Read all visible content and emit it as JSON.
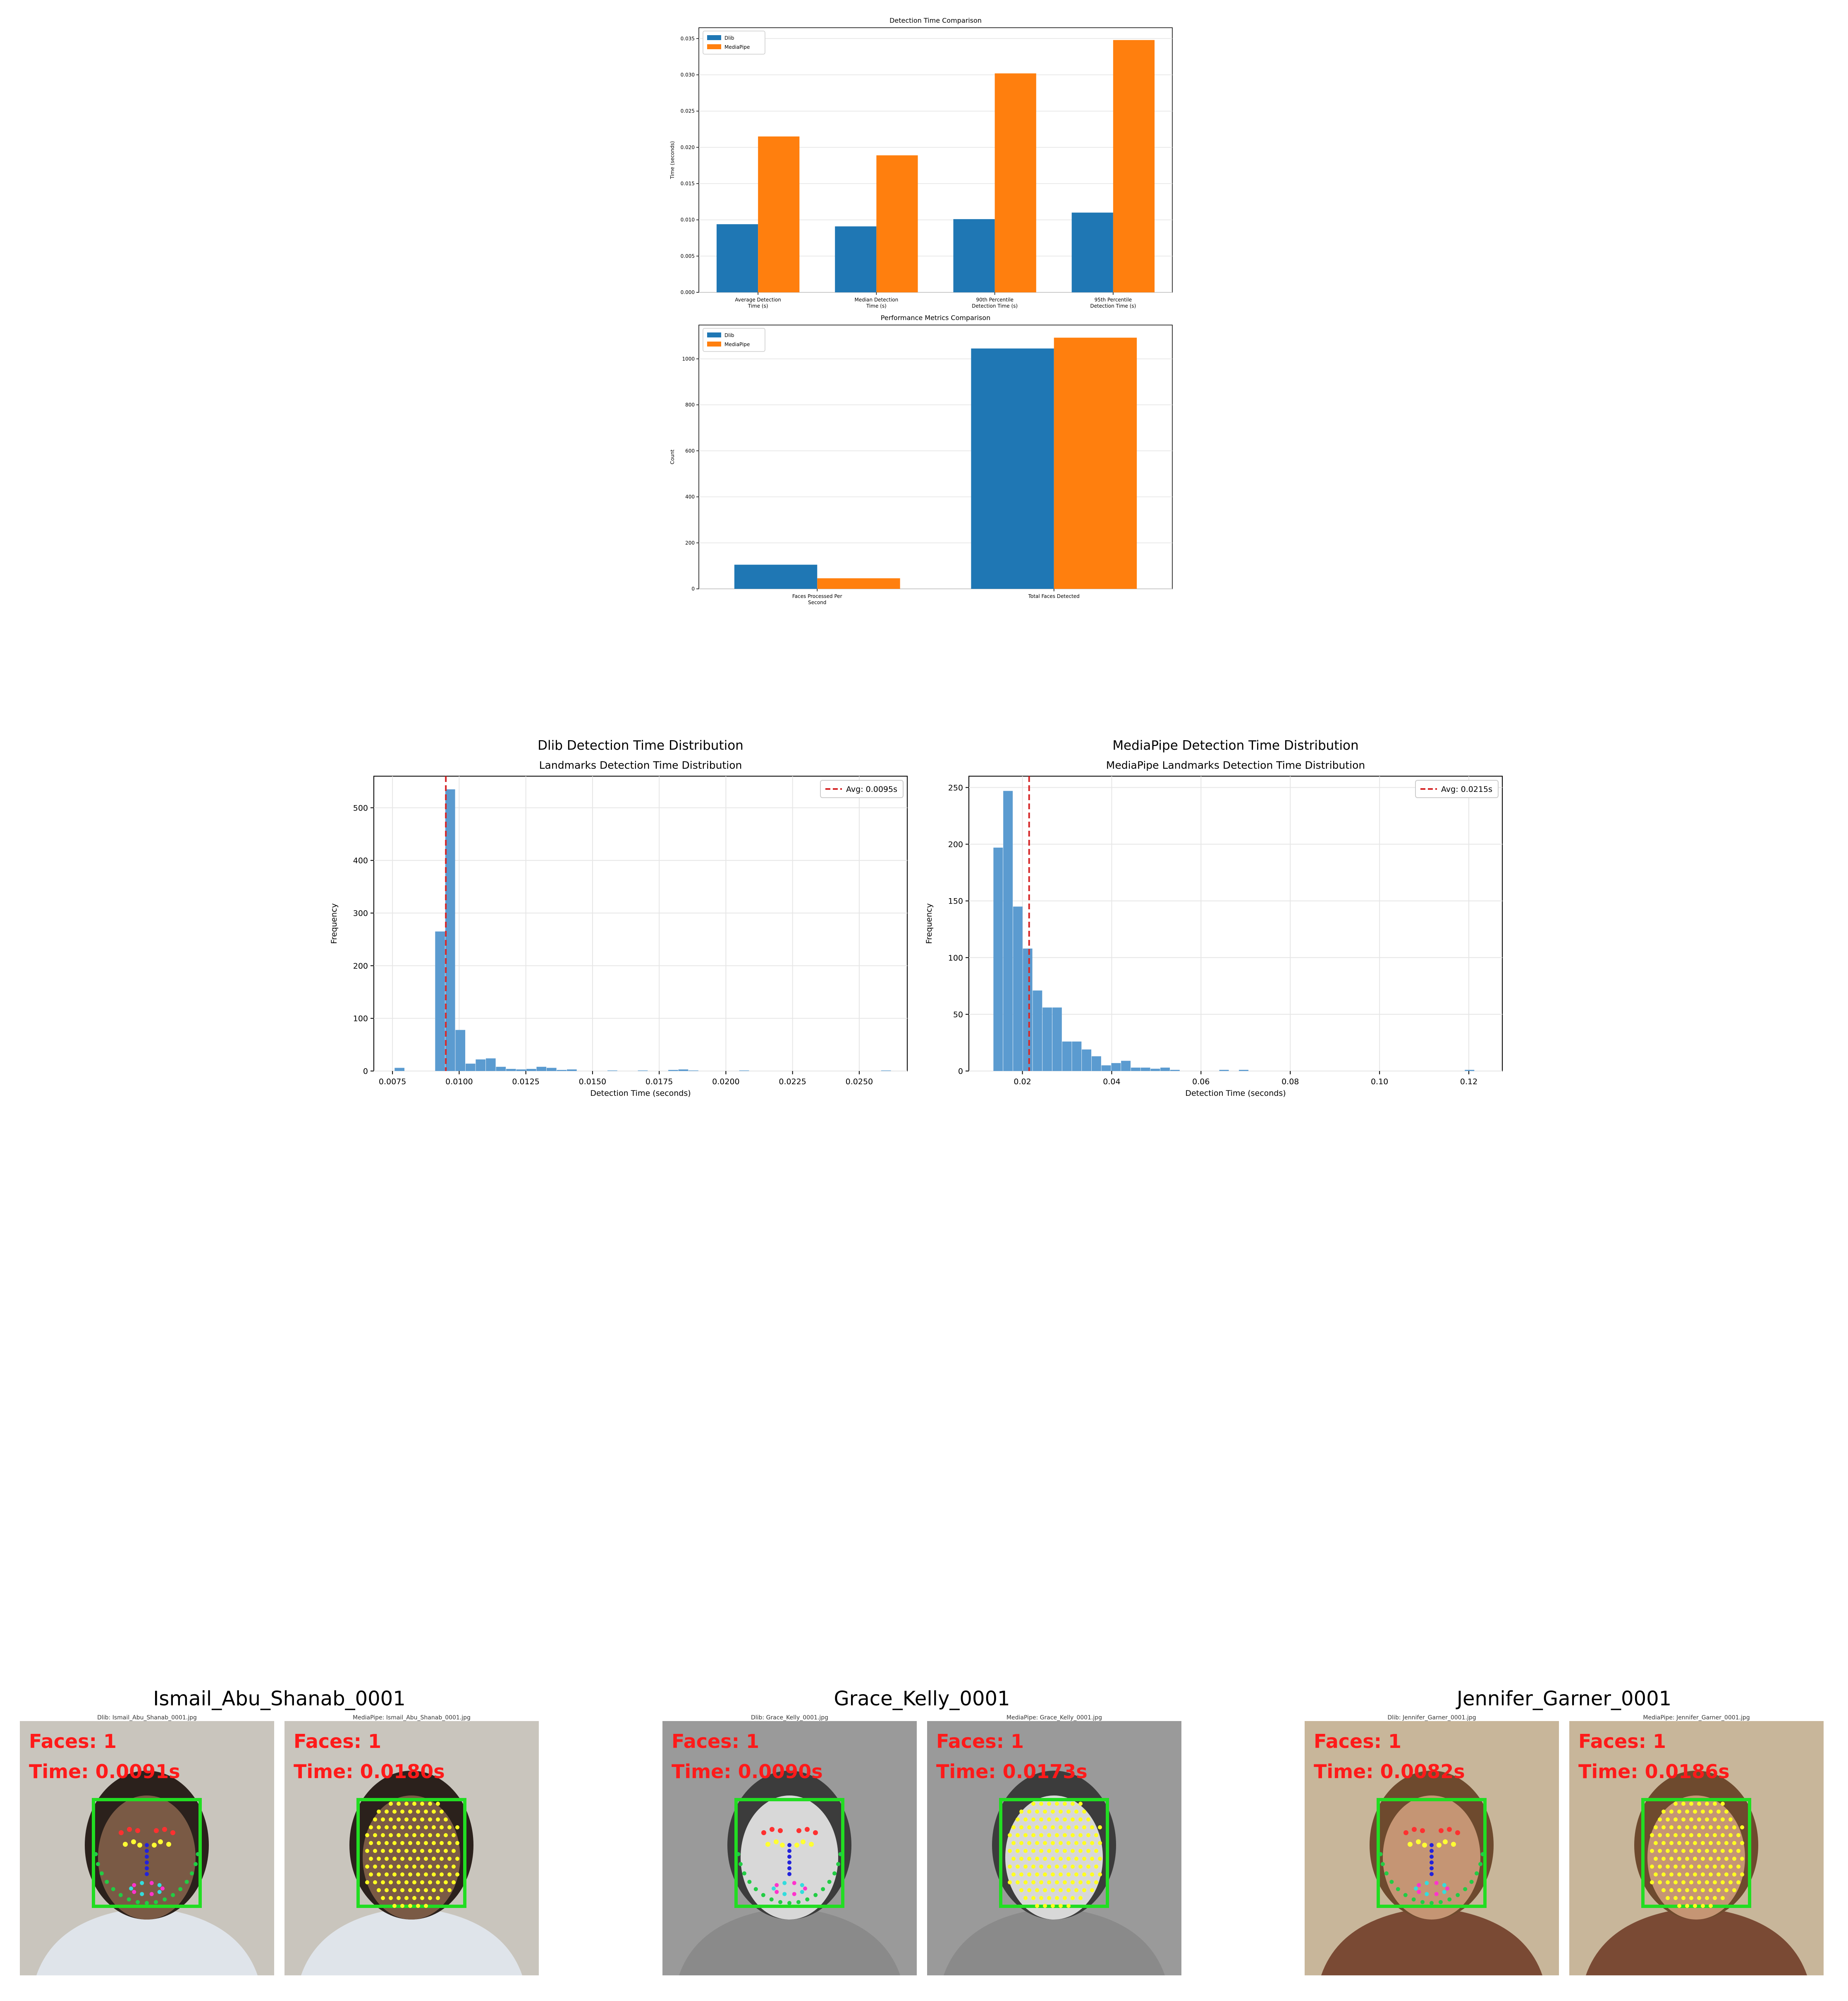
{
  "colors": {
    "dlib": "#1f77b4",
    "mediapipe": "#ff7f0e",
    "hist": "#5b9bd0",
    "avg_line": "#d62728",
    "box": "#22dd22",
    "overlay_text": "#ff1a1a"
  },
  "chart_data": [
    {
      "id": "detection-time-comparison",
      "type": "bar",
      "title": "Detection Time Comparison",
      "xlabel": "",
      "ylabel": "Time (seconds)",
      "categories": [
        "Average Detection\nTime (s)",
        "Median Detection\nTime (s)",
        "90th Percentile\nDetection Time (s)",
        "95th Percentile\nDetection Time (s)"
      ],
      "series": [
        {
          "name": "Dlib",
          "values": [
            0.0094,
            0.0091,
            0.0101,
            0.011
          ]
        },
        {
          "name": "MediaPipe",
          "values": [
            0.0215,
            0.0189,
            0.0302,
            0.0348
          ]
        }
      ],
      "ylim": [
        0,
        0.0365
      ],
      "yticks": [
        0,
        0.005,
        0.01,
        0.015,
        0.02,
        0.025,
        0.03,
        0.035
      ],
      "ytick_labels": [
        "0.000",
        "0.005",
        "0.010",
        "0.015",
        "0.020",
        "0.025",
        "0.030",
        "0.035"
      ],
      "grid": "y",
      "legend": "top-left"
    },
    {
      "id": "performance-metrics-comparison",
      "type": "bar",
      "title": "Performance Metrics Comparison",
      "xlabel": "",
      "ylabel": "Count",
      "categories": [
        "Faces Processed Per\nSecond",
        "Total Faces Detected"
      ],
      "series": [
        {
          "name": "Dlib",
          "values": [
            105,
            1045
          ]
        },
        {
          "name": "MediaPipe",
          "values": [
            46,
            1092
          ]
        }
      ],
      "ylim": [
        0,
        1147
      ],
      "yticks": [
        0,
        200,
        400,
        600,
        800,
        1000
      ],
      "ytick_labels": [
        "0",
        "200",
        "400",
        "600",
        "800",
        "1000"
      ],
      "grid": "y",
      "legend": "top-left"
    },
    {
      "id": "dlib-histogram",
      "type": "bar",
      "suptitle": "Dlib Detection Time Distribution",
      "title": "Landmarks Detection Time Distribution",
      "xlabel": "Detection Time (seconds)",
      "ylabel": "Frequency",
      "bin_start": 0.0072,
      "bin_width": 0.00038,
      "values": [
        0,
        6,
        0,
        0,
        0,
        265,
        535,
        78,
        14,
        22,
        24,
        8,
        4,
        3,
        4,
        8,
        6,
        2,
        3,
        0,
        0,
        0,
        1,
        0,
        0,
        1,
        0,
        0,
        2,
        3,
        1,
        0,
        0,
        0,
        0,
        1,
        0,
        0,
        0,
        0,
        0,
        0,
        0,
        0,
        0,
        0,
        0,
        0,
        0,
        1
      ],
      "avg": 0.0095,
      "avg_label": "Avg: 0.0095s",
      "xlim": [
        0.0068,
        0.0268
      ],
      "ylim": [
        0,
        560
      ],
      "xticks": [
        0.0075,
        0.01,
        0.0125,
        0.015,
        0.0175,
        0.02,
        0.0225,
        0.025
      ],
      "xtick_labels": [
        "0.0075",
        "0.0100",
        "0.0125",
        "0.0150",
        "0.0175",
        "0.0200",
        "0.0225",
        "0.0250"
      ],
      "yticks": [
        0,
        100,
        200,
        300,
        400,
        500
      ],
      "ytick_labels": [
        "0",
        "100",
        "200",
        "300",
        "400",
        "500"
      ],
      "grid": "both",
      "legend": "top-right"
    },
    {
      "id": "mediapipe-histogram",
      "type": "bar",
      "suptitle": "MediaPipe Detection Time Distribution",
      "title": "MediaPipe Landmarks Detection Time Distribution",
      "xlabel": "Detection Time (seconds)",
      "ylabel": "Frequency",
      "bin_start": 0.0135,
      "bin_width": 0.0022,
      "values": [
        197,
        247,
        145,
        108,
        71,
        56,
        56,
        26,
        26,
        19,
        13,
        5,
        7,
        9,
        3,
        3,
        2,
        3,
        1,
        0,
        0,
        0,
        0,
        1,
        0,
        1,
        0,
        0,
        0,
        0,
        0,
        0,
        0,
        0,
        0,
        0,
        0,
        0,
        0,
        0,
        0,
        0,
        0,
        0,
        0,
        0,
        0,
        0,
        1,
        0
      ],
      "avg": 0.0215,
      "avg_label": "Avg: 0.0215s",
      "xlim": [
        0.008,
        0.1275
      ],
      "ylim": [
        0,
        260
      ],
      "xticks": [
        0.02,
        0.04,
        0.06,
        0.08,
        0.1,
        0.12
      ],
      "xtick_labels": [
        "0.02",
        "0.04",
        "0.06",
        "0.08",
        "0.10",
        "0.12"
      ],
      "yticks": [
        0,
        50,
        100,
        150,
        200,
        250
      ],
      "ytick_labels": [
        "0",
        "50",
        "100",
        "150",
        "200",
        "250"
      ],
      "grid": "both",
      "legend": "top-right"
    }
  ],
  "samples": [
    {
      "title": "Ismail_Abu_Shanab_0001",
      "dlib": {
        "caption": "Dlib: Ismail_Abu_Shanab_0001.jpg",
        "faces": "Faces: 1",
        "time": "Time: 0.0091s"
      },
      "mediapipe": {
        "caption": "MediaPipe: Ismail_Abu_Shanab_0001.jpg",
        "faces": "Faces: 1",
        "time": "Time: 0.0180s"
      },
      "bg": "#c9c5bd",
      "skin": "#7a5a45",
      "hair": "#2b211c",
      "shirt": "#dfe4ea"
    },
    {
      "title": "Grace_Kelly_0001",
      "dlib": {
        "caption": "Dlib: Grace_Kelly_0001.jpg",
        "faces": "Faces: 1",
        "time": "Time: 0.0090s"
      },
      "mediapipe": {
        "caption": "MediaPipe: Grace_Kelly_0001.jpg",
        "faces": "Faces: 1",
        "time": "Time: 0.0173s"
      },
      "bg": "#9a9a9a",
      "skin": "#d8d8d8",
      "hair": "#3c3c3c",
      "shirt": "#8a8a8a"
    },
    {
      "title": "Jennifer_Garner_0001",
      "dlib": {
        "caption": "Dlib: Jennifer_Garner_0001.jpg",
        "faces": "Faces: 1",
        "time": "Time: 0.0082s"
      },
      "mediapipe": {
        "caption": "MediaPipe: Jennifer_Garner_0001.jpg",
        "faces": "Faces: 1",
        "time": "Time: 0.0186s"
      },
      "bg": "#c8b69a",
      "skin": "#c59574",
      "hair": "#6e4a2e",
      "shirt": "#7a4a34"
    }
  ]
}
